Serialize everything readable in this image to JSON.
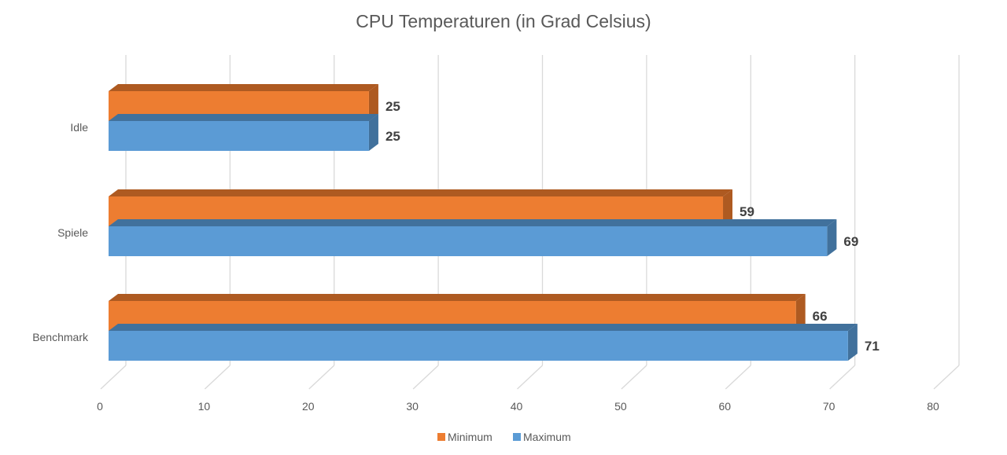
{
  "chart_data": {
    "type": "bar",
    "orientation": "horizontal",
    "style": "3d-clustered",
    "title": "CPU Temperaturen (in Grad Celsius)",
    "categories": [
      "Idle",
      "Spiele",
      "Benchmark"
    ],
    "series": [
      {
        "name": "Minimum",
        "values": [
          25,
          59,
          66
        ],
        "color": "#ED7D31",
        "side_color": "#AE5A21"
      },
      {
        "name": "Maximum",
        "values": [
          25,
          69,
          71
        ],
        "color": "#5B9BD5",
        "side_color": "#41719C"
      }
    ],
    "xlim": [
      0,
      80
    ],
    "xticks": [
      "0",
      "10",
      "20",
      "30",
      "40",
      "50",
      "60",
      "70",
      "80"
    ],
    "grid": true,
    "legend": "bottom"
  }
}
